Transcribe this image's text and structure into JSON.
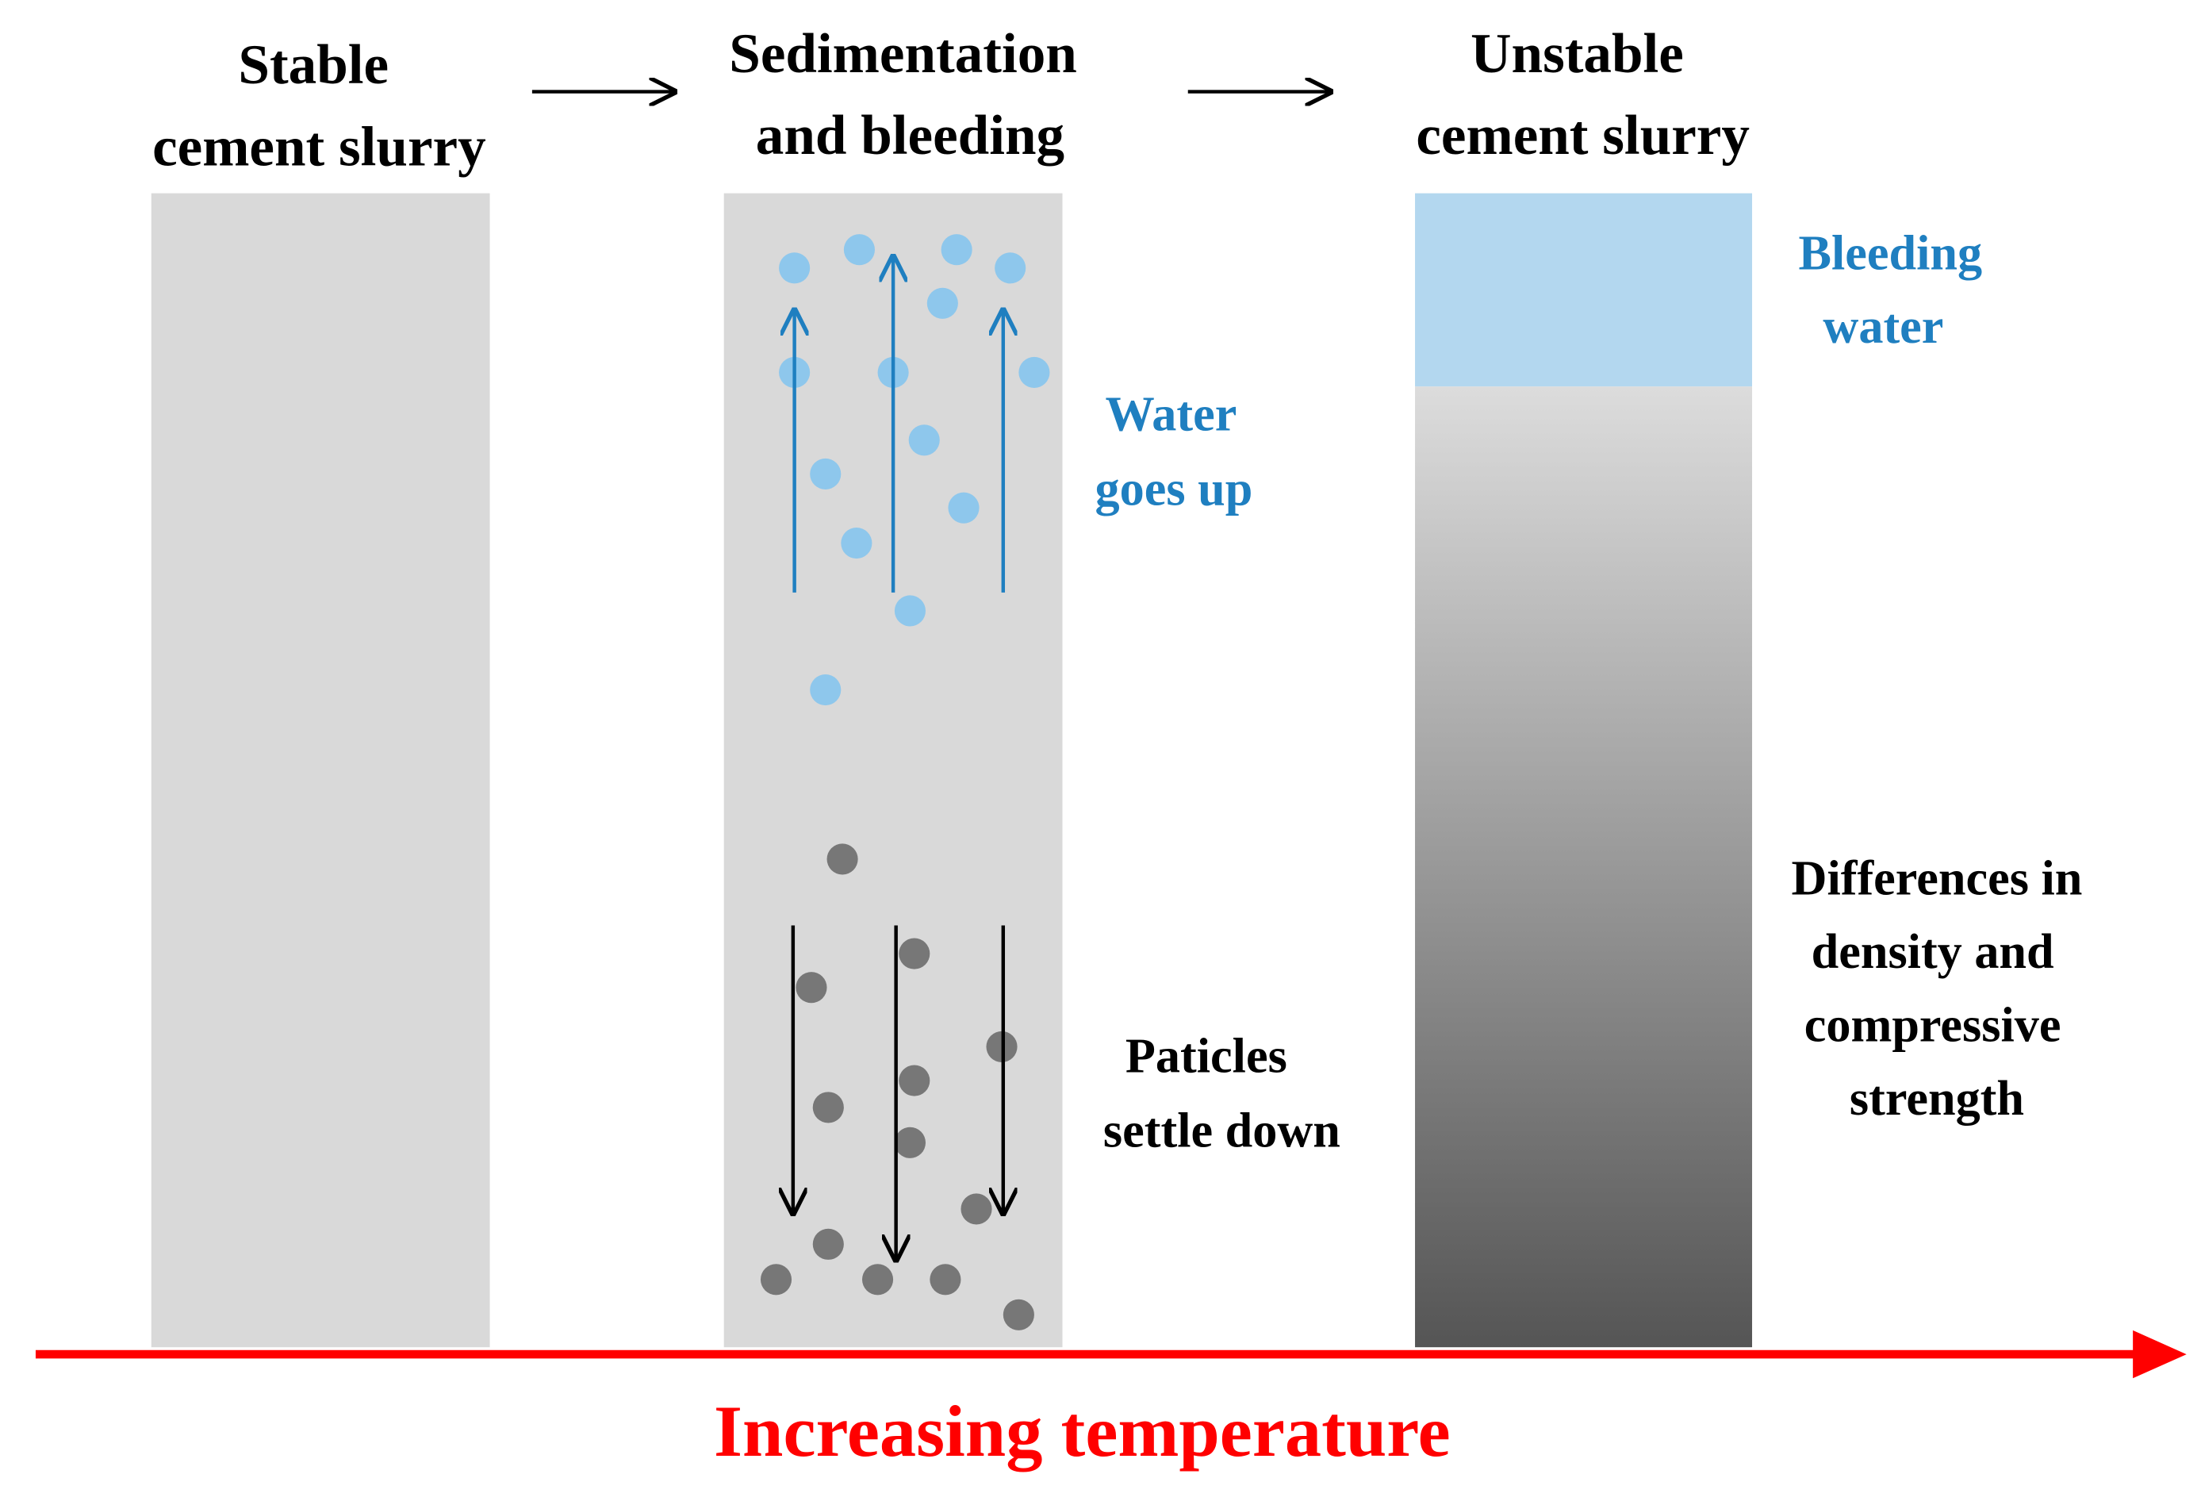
{
  "columns": [
    {
      "title": [
        "Stable",
        "cement slurry"
      ]
    },
    {
      "title": [
        "Sedimentation",
        "and bleeding"
      ]
    },
    {
      "title": [
        "Unstable",
        "cement slurry"
      ]
    }
  ],
  "annotations": {
    "water": [
      "Water",
      "goes up"
    ],
    "particles": [
      "Paticles",
      "settle down"
    ],
    "bleeding": [
      "Bleeding",
      "water"
    ],
    "differences": [
      "Differences in",
      "density and",
      "compressive",
      "strength"
    ]
  },
  "axis_label": "Increasing temperature"
}
